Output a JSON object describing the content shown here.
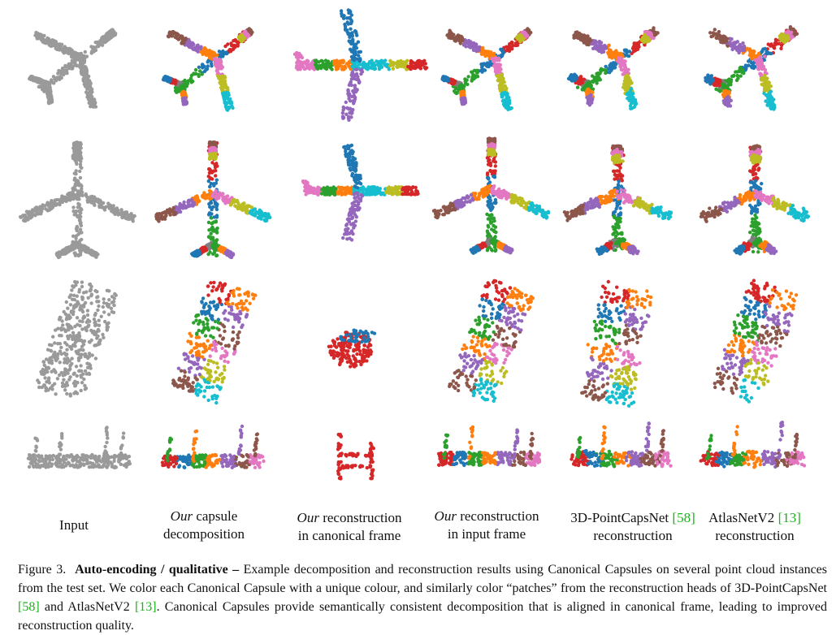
{
  "columns": [
    {
      "line1_italic": "",
      "line1_rest": "Input",
      "line2": "",
      "ref": ""
    },
    {
      "line1_italic": "Our",
      "line1_rest": " capsule",
      "line2": "decomposition",
      "ref": ""
    },
    {
      "line1_italic": "Our",
      "line1_rest": " reconstruction",
      "line2": "in canonical frame",
      "ref": ""
    },
    {
      "line1_italic": "Our",
      "line1_rest": " reconstruction",
      "line2": "in input frame",
      "ref": ""
    },
    {
      "line1_italic": "",
      "line1_rest": "3D-PointCapsNet ",
      "line2": "reconstruction",
      "ref": "[58]"
    },
    {
      "line1_italic": "",
      "line1_rest": "AtlasNetV2 ",
      "line2": "reconstruction",
      "ref": "[13]"
    }
  ],
  "caption": {
    "label": "Figure 3.",
    "title": "Auto-encoding / qualitative –",
    "text_1": " Example decomposition and reconstruction results using Canonical Capsules on several point cloud instances from the test set. We color each Canonical Capsule with a unique colour, and similarly color “patches” from the reconstruction heads of 3D-PointCapsNet ",
    "ref_1": "[58]",
    "text_2": " and AtlasNetV2 ",
    "ref_2": "[13]",
    "text_3": ". Canonical Capsules provide semantically consistent decomposition that is aligned in canonical frame, leading to improved reconstruction quality."
  },
  "colors": {
    "gray": "#9a9a9a",
    "red": "#d62728",
    "blue": "#1f77b4",
    "green": "#2ca02c",
    "orange": "#ff7f0e",
    "purple": "#9467bd",
    "brown": "#8c564b",
    "pink": "#e377c2",
    "olive": "#bcbd22",
    "cyan": "#17becf",
    "darkgray": "#7f7f7f"
  }
}
